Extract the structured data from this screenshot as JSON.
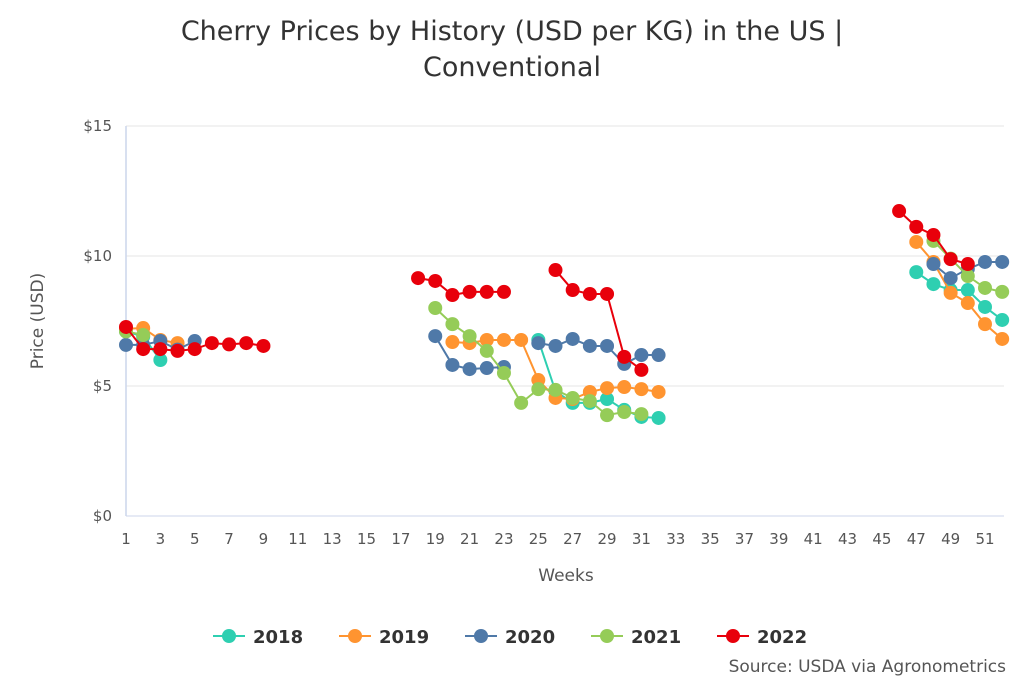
{
  "chart_data": {
    "type": "line",
    "title": [
      "Cherry Prices by History (USD per KG) in the US |",
      "Conventional"
    ],
    "xlabel": "Weeks",
    "ylabel": "Price (USD)",
    "xlim": [
      1,
      52
    ],
    "ylim": [
      0,
      15
    ],
    "x_ticks": [
      1,
      3,
      5,
      7,
      9,
      11,
      13,
      15,
      17,
      19,
      21,
      23,
      25,
      27,
      29,
      31,
      33,
      35,
      37,
      39,
      41,
      43,
      45,
      47,
      49,
      51
    ],
    "y_ticks": [
      {
        "v": 0,
        "label": "$0"
      },
      {
        "v": 5,
        "label": "$5"
      },
      {
        "v": 10,
        "label": "$10"
      },
      {
        "v": 15,
        "label": "$15"
      }
    ],
    "grid": "horizontal",
    "legend": "bottom",
    "source": "Source: USDA via Agronometrics",
    "series": [
      {
        "name": "2018",
        "color": "#2ecfb1",
        "points": [
          [
            1,
            7.1
          ],
          [
            2,
            6.9
          ],
          [
            3,
            6.0
          ],
          [
            25,
            6.77
          ],
          [
            26,
            4.8
          ],
          [
            27,
            4.35
          ],
          [
            28,
            4.35
          ],
          [
            29,
            4.5
          ],
          [
            30,
            4.08
          ],
          [
            31,
            3.81
          ],
          [
            32,
            3.77
          ],
          [
            47,
            9.38
          ],
          [
            48,
            8.92
          ],
          [
            49,
            8.69
          ],
          [
            50,
            8.69
          ],
          [
            51,
            8.04
          ],
          [
            52,
            7.54
          ]
        ]
      },
      {
        "name": "2019",
        "color": "#ff9430",
        "points": [
          [
            1,
            7.2
          ],
          [
            2,
            7.23
          ],
          [
            3,
            6.77
          ],
          [
            4,
            6.65
          ],
          [
            20,
            6.69
          ],
          [
            21,
            6.65
          ],
          [
            22,
            6.77
          ],
          [
            23,
            6.77
          ],
          [
            24,
            6.77
          ],
          [
            25,
            5.23
          ],
          [
            26,
            4.54
          ],
          [
            27,
            4.5
          ],
          [
            28,
            4.77
          ],
          [
            29,
            4.92
          ],
          [
            30,
            4.96
          ],
          [
            31,
            4.88
          ],
          [
            32,
            4.77
          ],
          [
            47,
            10.54
          ],
          [
            48,
            9.77
          ],
          [
            49,
            8.58
          ],
          [
            50,
            8.19
          ],
          [
            51,
            7.38
          ],
          [
            52,
            6.81
          ]
        ]
      },
      {
        "name": "2020",
        "color": "#4f79a8",
        "points": [
          [
            1,
            6.58
          ],
          [
            2,
            6.58
          ],
          [
            3,
            6.73
          ],
          [
            4,
            6.4
          ],
          [
            5,
            6.73
          ],
          [
            19,
            6.92
          ],
          [
            20,
            5.81
          ],
          [
            21,
            5.65
          ],
          [
            22,
            5.69
          ],
          [
            23,
            5.73
          ],
          [
            25,
            6.65
          ],
          [
            26,
            6.54
          ],
          [
            27,
            6.81
          ],
          [
            28,
            6.54
          ],
          [
            29,
            6.54
          ],
          [
            30,
            5.85
          ],
          [
            31,
            6.19
          ],
          [
            32,
            6.19
          ],
          [
            48,
            9.69
          ],
          [
            49,
            9.15
          ],
          [
            50,
            9.5
          ],
          [
            51,
            9.77
          ],
          [
            52,
            9.77
          ]
        ]
      },
      {
        "name": "2021",
        "color": "#95cc58",
        "points": [
          [
            1,
            7.1
          ],
          [
            2,
            6.96
          ],
          [
            19,
            8.0
          ],
          [
            20,
            7.38
          ],
          [
            21,
            6.92
          ],
          [
            22,
            6.35
          ],
          [
            23,
            5.5
          ],
          [
            24,
            4.35
          ],
          [
            25,
            4.88
          ],
          [
            26,
            4.85
          ],
          [
            27,
            4.54
          ],
          [
            28,
            4.42
          ],
          [
            29,
            3.88
          ],
          [
            30,
            4.0
          ],
          [
            31,
            3.92
          ],
          [
            48,
            10.58
          ],
          [
            49,
            9.9
          ],
          [
            50,
            9.23
          ],
          [
            51,
            8.77
          ],
          [
            52,
            8.62
          ]
        ]
      },
      {
        "name": "2022",
        "color": "#e8000b",
        "points": [
          [
            1,
            7.27
          ],
          [
            2,
            6.42
          ],
          [
            3,
            6.42
          ],
          [
            4,
            6.35
          ],
          [
            5,
            6.42
          ],
          [
            6,
            6.65
          ],
          [
            7,
            6.6
          ],
          [
            8,
            6.65
          ],
          [
            9,
            6.54
          ],
          [
            18,
            9.15
          ],
          [
            19,
            9.04
          ],
          [
            20,
            8.5
          ],
          [
            21,
            8.62
          ],
          [
            22,
            8.62
          ],
          [
            23,
            8.62
          ],
          [
            26,
            9.46
          ],
          [
            27,
            8.69
          ],
          [
            28,
            8.54
          ],
          [
            29,
            8.54
          ],
          [
            30,
            6.12
          ],
          [
            31,
            5.62
          ],
          [
            46,
            11.73
          ],
          [
            47,
            11.12
          ],
          [
            48,
            10.81
          ],
          [
            49,
            9.88
          ],
          [
            50,
            9.69
          ]
        ]
      }
    ]
  }
}
